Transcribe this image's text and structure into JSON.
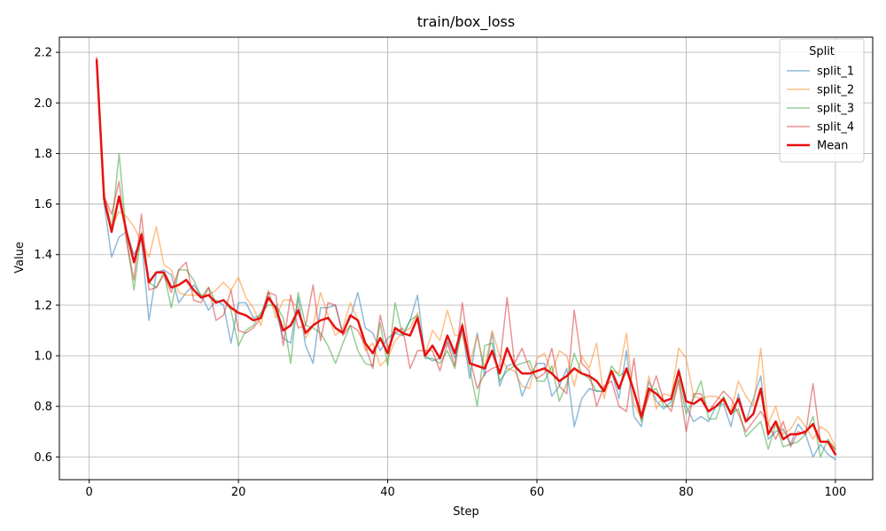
{
  "chart_data": {
    "type": "line",
    "title": "train/box_loss",
    "xlabel": "Step",
    "ylabel": "Value",
    "xlim": [
      -4,
      105
    ],
    "ylim": [
      0.51,
      2.26
    ],
    "xticks": [
      0,
      20,
      40,
      60,
      80,
      100
    ],
    "yticks": [
      0.6,
      0.8,
      1.0,
      1.2,
      1.4,
      1.6,
      1.8,
      2.0,
      2.2
    ],
    "grid": true,
    "legend": {
      "title": "Split",
      "placement": "top-right"
    },
    "x": [
      1,
      2,
      3,
      4,
      5,
      6,
      7,
      8,
      9,
      10,
      11,
      12,
      13,
      14,
      15,
      16,
      17,
      18,
      19,
      20,
      21,
      22,
      23,
      24,
      25,
      26,
      27,
      28,
      29,
      30,
      31,
      32,
      33,
      34,
      35,
      36,
      37,
      38,
      39,
      40,
      41,
      42,
      43,
      44,
      45,
      46,
      47,
      48,
      49,
      50,
      51,
      52,
      53,
      54,
      55,
      56,
      57,
      58,
      59,
      60,
      61,
      62,
      63,
      64,
      65,
      66,
      67,
      68,
      69,
      70,
      71,
      72,
      73,
      74,
      75,
      76,
      77,
      78,
      79,
      80,
      81,
      82,
      83,
      84,
      85,
      86,
      87,
      88,
      89,
      90,
      91,
      92,
      93,
      94,
      95,
      96,
      97,
      98,
      99,
      100
    ],
    "series": [
      {
        "name": "split_1",
        "color": "#1f77b4",
        "opacity": 0.5,
        "width": 1.5,
        "values": [
          2.18,
          1.6,
          1.39,
          1.47,
          1.49,
          1.4,
          1.46,
          1.14,
          1.33,
          1.34,
          1.32,
          1.21,
          1.25,
          1.28,
          1.24,
          1.18,
          1.22,
          1.2,
          1.05,
          1.21,
          1.21,
          1.15,
          1.16,
          1.25,
          1.18,
          1.07,
          1.05,
          1.23,
          1.04,
          0.97,
          1.19,
          1.19,
          1.2,
          1.09,
          1.15,
          1.25,
          1.11,
          1.09,
          1.02,
          1.07,
          1.09,
          1.08,
          1.14,
          1.24,
          1.0,
          0.98,
          0.99,
          1.06,
          0.99,
          1.1,
          0.91,
          1.09,
          0.92,
          1.09,
          0.88,
          0.96,
          0.97,
          0.84,
          0.91,
          0.97,
          0.97,
          0.84,
          0.88,
          0.95,
          0.72,
          0.83,
          0.87,
          0.86,
          0.86,
          0.94,
          0.83,
          1.02,
          0.76,
          0.72,
          0.9,
          0.82,
          0.79,
          0.82,
          0.95,
          0.8,
          0.74,
          0.76,
          0.74,
          0.8,
          0.81,
          0.72,
          0.85,
          0.74,
          0.83,
          0.92,
          0.67,
          0.7,
          0.71,
          0.65,
          0.73,
          0.69,
          0.6,
          0.65,
          0.61,
          0.59
        ]
      },
      {
        "name": "split_2",
        "color": "#ff7f0e",
        "opacity": 0.5,
        "width": 1.5,
        "values": [
          2.18,
          1.64,
          1.51,
          1.57,
          1.55,
          1.51,
          1.45,
          1.39,
          1.51,
          1.36,
          1.34,
          1.25,
          1.24,
          1.24,
          1.24,
          1.24,
          1.26,
          1.29,
          1.26,
          1.31,
          1.23,
          1.19,
          1.12,
          1.26,
          1.15,
          1.22,
          1.22,
          1.19,
          1.07,
          1.12,
          1.25,
          1.16,
          1.08,
          1.11,
          1.21,
          1.14,
          1.02,
          1.05,
          0.96,
          0.99,
          1.06,
          1.09,
          1.11,
          1.17,
          1.0,
          1.1,
          1.06,
          1.18,
          1.08,
          1.08,
          0.97,
          1.08,
          0.95,
          1.1,
          1.0,
          0.95,
          0.94,
          0.88,
          0.87,
          0.99,
          1.01,
          0.93,
          1.02,
          1.0,
          0.88,
          1.0,
          0.95,
          1.05,
          0.83,
          0.94,
          0.93,
          1.09,
          0.81,
          0.75,
          0.92,
          0.79,
          0.85,
          0.84,
          1.03,
          0.99,
          0.84,
          0.83,
          0.84,
          0.84,
          0.82,
          0.78,
          0.9,
          0.84,
          0.8,
          1.03,
          0.73,
          0.8,
          0.69,
          0.71,
          0.76,
          0.72,
          0.67,
          0.72,
          0.7,
          0.64
        ]
      },
      {
        "name": "split_3",
        "color": "#2ca02c",
        "opacity": 0.5,
        "width": 1.5,
        "values": [
          2.16,
          1.61,
          1.5,
          1.8,
          1.47,
          1.26,
          1.49,
          1.29,
          1.27,
          1.33,
          1.19,
          1.34,
          1.34,
          1.3,
          1.23,
          1.27,
          1.21,
          1.22,
          1.18,
          1.04,
          1.1,
          1.12,
          1.17,
          1.2,
          1.2,
          1.15,
          0.97,
          1.25,
          1.12,
          1.11,
          1.09,
          1.04,
          0.97,
          1.05,
          1.12,
          1.02,
          0.97,
          0.96,
          1.13,
          0.96,
          1.21,
          1.08,
          1.14,
          1.16,
          0.99,
          0.99,
          0.97,
          1.02,
          0.95,
          1.13,
          0.95,
          0.8,
          1.04,
          1.05,
          0.9,
          0.94,
          0.96,
          0.97,
          0.98,
          0.9,
          0.9,
          0.96,
          0.82,
          0.89,
          1.01,
          0.93,
          0.91,
          0.86,
          0.86,
          0.96,
          0.92,
          0.94,
          0.86,
          0.74,
          0.86,
          0.87,
          0.8,
          0.8,
          0.91,
          0.77,
          0.83,
          0.9,
          0.75,
          0.75,
          0.84,
          0.77,
          0.79,
          0.68,
          0.71,
          0.74,
          0.63,
          0.73,
          0.64,
          0.65,
          0.66,
          0.69,
          0.76,
          0.6,
          0.67,
          0.63
        ]
      },
      {
        "name": "split_4",
        "color": "#d62728",
        "opacity": 0.5,
        "width": 1.5,
        "values": [
          2.15,
          1.63,
          1.56,
          1.69,
          1.45,
          1.3,
          1.56,
          1.26,
          1.27,
          1.32,
          1.25,
          1.34,
          1.37,
          1.22,
          1.21,
          1.27,
          1.14,
          1.16,
          1.26,
          1.1,
          1.09,
          1.11,
          1.15,
          1.25,
          1.24,
          1.04,
          1.24,
          1.11,
          1.12,
          1.28,
          1.06,
          1.21,
          1.2,
          1.08,
          1.12,
          1.1,
          1.04,
          0.95,
          1.16,
          1.03,
          1.09,
          1.11,
          0.95,
          1.02,
          1.02,
          1.02,
          0.94,
          1.05,
          0.96,
          1.21,
          0.99,
          0.87,
          0.93,
          0.95,
          0.96,
          1.23,
          0.97,
          1.03,
          0.95,
          0.91,
          0.93,
          1.03,
          0.88,
          0.85,
          1.18,
          0.97,
          0.94,
          0.8,
          0.88,
          0.9,
          0.8,
          0.78,
          0.99,
          0.75,
          0.84,
          0.92,
          0.82,
          0.78,
          0.9,
          0.7,
          0.85,
          0.85,
          0.78,
          0.82,
          0.86,
          0.83,
          0.77,
          0.7,
          0.74,
          0.78,
          0.73,
          0.67,
          0.74,
          0.64,
          0.7,
          0.69,
          0.89,
          0.66,
          0.66,
          0.63
        ]
      },
      {
        "name": "Mean",
        "color": "#e8110f",
        "opacity": 1,
        "width": 2.5,
        "values": [
          2.17,
          1.62,
          1.49,
          1.63,
          1.49,
          1.37,
          1.48,
          1.29,
          1.33,
          1.33,
          1.27,
          1.28,
          1.3,
          1.26,
          1.23,
          1.24,
          1.21,
          1.22,
          1.19,
          1.17,
          1.16,
          1.14,
          1.15,
          1.23,
          1.19,
          1.1,
          1.12,
          1.18,
          1.09,
          1.12,
          1.14,
          1.15,
          1.11,
          1.09,
          1.16,
          1.14,
          1.05,
          1.01,
          1.07,
          1.01,
          1.11,
          1.09,
          1.08,
          1.15,
          1.0,
          1.04,
          0.99,
          1.08,
          1.01,
          1.12,
          0.97,
          0.96,
          0.95,
          1.02,
          0.93,
          1.03,
          0.96,
          0.93,
          0.93,
          0.94,
          0.95,
          0.93,
          0.9,
          0.92,
          0.95,
          0.93,
          0.92,
          0.9,
          0.86,
          0.94,
          0.87,
          0.95,
          0.86,
          0.76,
          0.87,
          0.85,
          0.82,
          0.83,
          0.94,
          0.82,
          0.81,
          0.83,
          0.78,
          0.8,
          0.83,
          0.77,
          0.83,
          0.74,
          0.77,
          0.87,
          0.69,
          0.74,
          0.67,
          0.69,
          0.69,
          0.7,
          0.73,
          0.66,
          0.66,
          0.61
        ]
      }
    ]
  }
}
